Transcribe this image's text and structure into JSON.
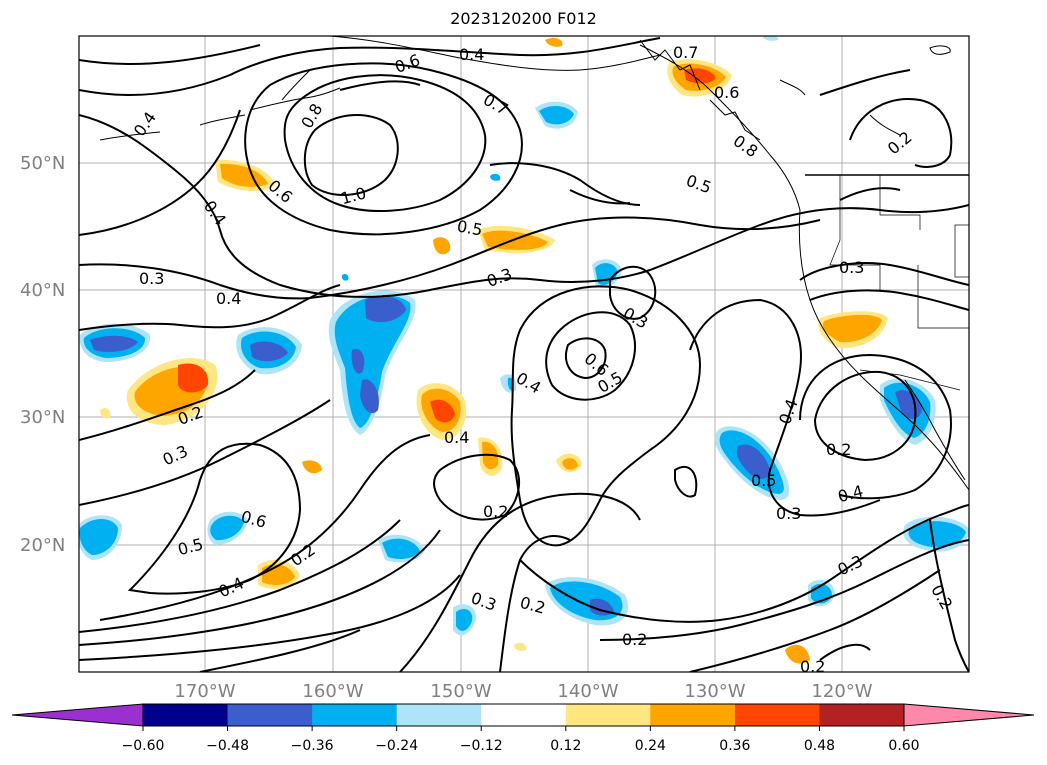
{
  "title": "2023120200 F012",
  "lat_labels": [
    "50°N",
    "40°N",
    "30°N",
    "20°N"
  ],
  "lon_labels": [
    "170°W",
    "160°W",
    "150°W",
    "140°W",
    "130°W",
    "120°W"
  ],
  "colorbar": {
    "ticks": [
      "−0.60",
      "−0.48",
      "−0.36",
      "−0.24",
      "−0.12",
      "0.12",
      "0.24",
      "0.36",
      "0.48",
      "0.60"
    ],
    "colors": [
      "#9b30d0",
      "#00008b",
      "#3a5fcd",
      "#00b0f0",
      "#aee4f8",
      "#ffffff",
      "#ffe680",
      "#ffa500",
      "#ff4500",
      "#b22222",
      "#ff88aa"
    ]
  },
  "contour_labels": [
    "0.4",
    "0.8",
    "0.7",
    "0.6",
    "0.7",
    "0.6",
    "0.4",
    "0.8",
    "1.0",
    "0.6",
    "0.5",
    "0.4",
    "0.5",
    "0.3",
    "0.3",
    "0.4",
    "0.3",
    "0.3",
    "0.4",
    "0.6",
    "0.5",
    "0.4",
    "0.2",
    "0.3",
    "0.4",
    "0.2",
    "0.2",
    "0.4",
    "0.6",
    "0.5",
    "0.2",
    "0.4",
    "0.5",
    "0.3",
    "0.2",
    "0.3",
    "0.2",
    "0.2",
    "0.3",
    "0.2",
    "0.2"
  ]
}
